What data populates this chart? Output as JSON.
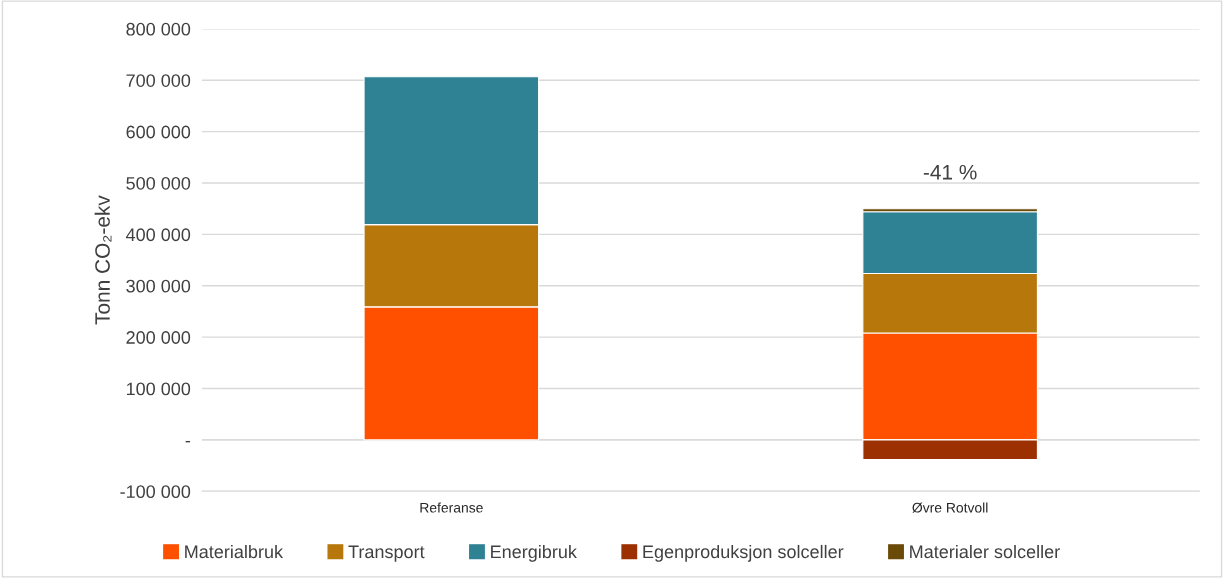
{
  "chart_data": {
    "type": "bar",
    "stacked": true,
    "ylabel": "Tonn CO₂-ekv",
    "categories": [
      "Referanse",
      "Øvre Rotvoll"
    ],
    "series": [
      {
        "name": "Materialbruk",
        "color": "#ff5000",
        "values": [
          259000,
          208000
        ]
      },
      {
        "name": "Transport",
        "color": "#b8770b",
        "values": [
          160000,
          116000
        ]
      },
      {
        "name": "Energibruk",
        "color": "#2e8294",
        "values": [
          288000,
          120000
        ]
      },
      {
        "name": "Egenproduksjon solceller",
        "color": "#9c3000",
        "values": [
          null,
          -38000
        ]
      },
      {
        "name": "Materialer solceller",
        "color": "#6b4a08",
        "values": [
          null,
          6000
        ]
      }
    ],
    "ylim": [
      -100000,
      800000
    ],
    "yticks": [
      {
        "value": -100000,
        "label": "-100 000"
      },
      {
        "value": 0,
        "label": "-"
      },
      {
        "value": 100000,
        "label": "100 000"
      },
      {
        "value": 200000,
        "label": "200 000"
      },
      {
        "value": 300000,
        "label": "300 000"
      },
      {
        "value": 400000,
        "label": "400 000"
      },
      {
        "value": 500000,
        "label": "500 000"
      },
      {
        "value": 600000,
        "label": "600 000"
      },
      {
        "value": 700000,
        "label": "700 000"
      },
      {
        "value": 800000,
        "label": "800 000"
      }
    ],
    "annotations": [
      {
        "text": "-41 %",
        "x": "Øvre Rotvoll",
        "y": 450000
      }
    ],
    "grid": "y",
    "legend": "bottom"
  }
}
